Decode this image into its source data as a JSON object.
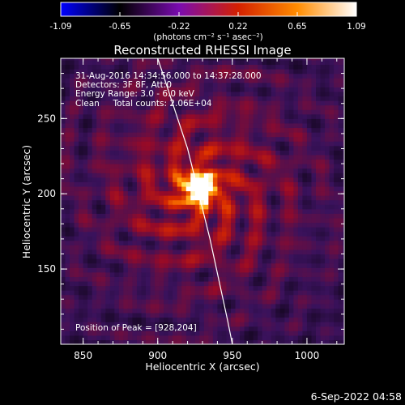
{
  "chart_data": {
    "type": "heatmap",
    "title": "Reconstructed RHESSI Image",
    "colorbar": {
      "ticks": [
        "-1.09",
        "-0.65",
        "-0.22",
        "0.22",
        "0.65",
        "1.09"
      ],
      "range": [
        -1.09,
        1.09
      ],
      "unit_label": "(photons cm⁻² s⁻¹ asec⁻²)",
      "colormap": [
        "#0000ff",
        "#000000",
        "#7a0bb0",
        "#d42000",
        "#ff8c00",
        "#ffffff"
      ]
    },
    "xlabel": "Heliocentric X (arcsec)",
    "ylabel": "Heliocentric Y (arcsec)",
    "xlim": [
      835,
      1025
    ],
    "ylim": [
      100,
      290
    ],
    "xticks": [
      850,
      900,
      950,
      1000
    ],
    "yticks": [
      150,
      200,
      250
    ],
    "annotations": [
      "31-Aug-2016 14:34:56.000 to 14:37:28.000",
      "Detectors: 3F 8F, Att:0",
      "Energy Range: 3.0 - 6.0 keV",
      "Clean     Total counts: 2.06E+04"
    ],
    "peak_label": "Position of Peak = [928,204]",
    "peak": [
      928,
      204
    ],
    "peak_value": 1.09,
    "limb": [
      [
        900,
        290
      ],
      [
        920,
        230
      ],
      [
        935,
        170
      ],
      [
        947,
        115
      ],
      [
        950,
        100
      ]
    ],
    "footer": "6-Sep-2022 04:58"
  }
}
